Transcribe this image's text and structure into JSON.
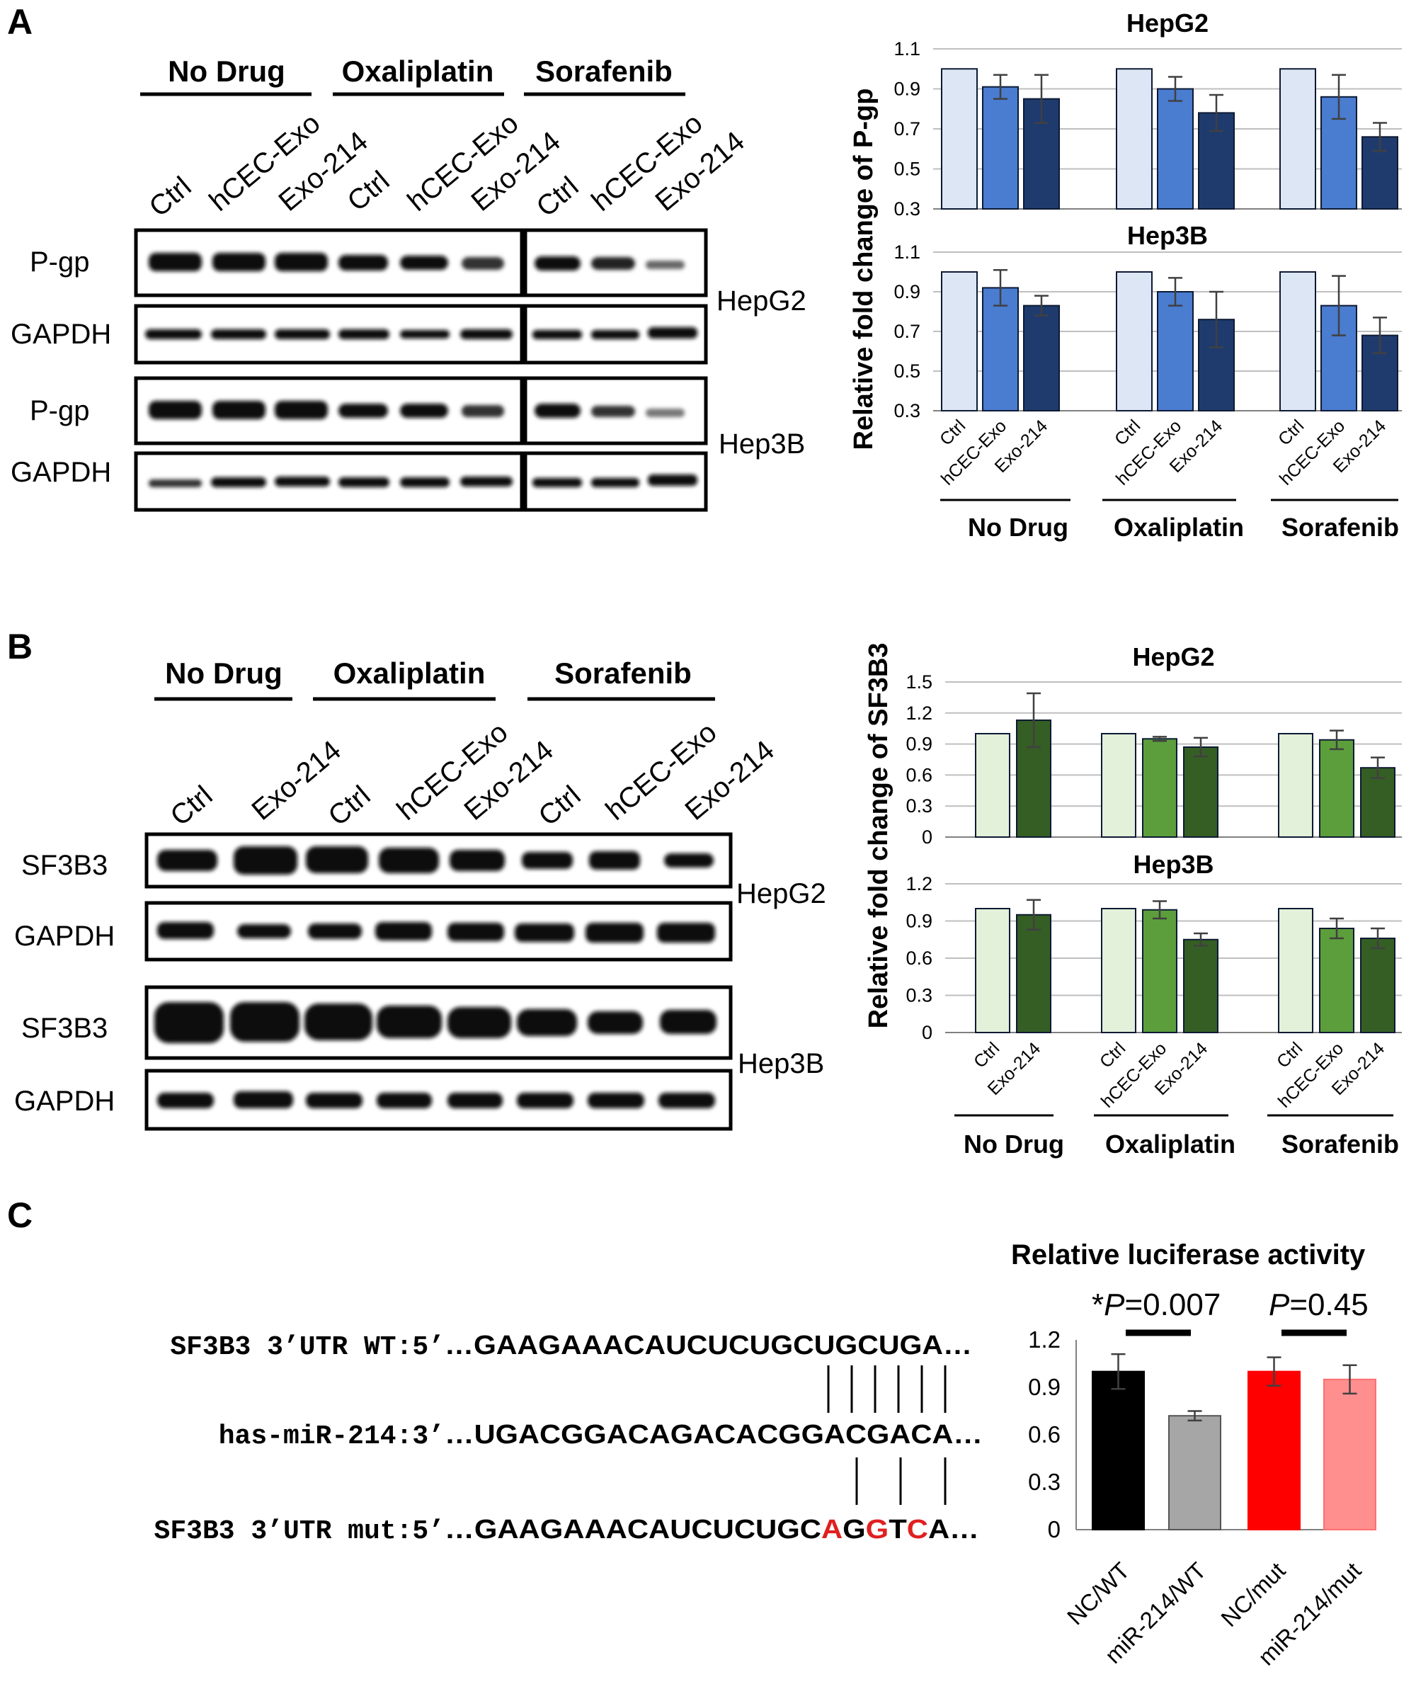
{
  "panels": {
    "A": {
      "letter": "A",
      "blot": {
        "groups": [
          "No Drug",
          "Oxaliplatin",
          "Sorafenib"
        ],
        "lanes": [
          "Ctrl",
          "hCEC-Exo",
          "Exo-214",
          "Ctrl",
          "hCEC-Exo",
          "Exo-214",
          "Ctrl",
          "hCEC-Exo",
          "Exo-214"
        ],
        "rows": [
          "P-gp",
          "GAPDH",
          "P-gp",
          "GAPDH"
        ],
        "cell_lines": [
          "HepG2",
          "Hep3B"
        ]
      },
      "ylabel": "Relative fold change of P-gp",
      "lane_labels": [
        "Ctrl",
        "hCEC-Exo",
        "Exo-214"
      ],
      "group_labels": [
        "No Drug",
        "Oxaliplatin",
        "Sorafenib"
      ]
    },
    "B": {
      "letter": "B",
      "blot": {
        "groups": [
          "No Drug",
          "Oxaliplatin",
          "Sorafenib"
        ],
        "lanes": [
          "Ctrl",
          "Exo-214",
          "Ctrl",
          "hCEC-Exo",
          "Exo-214",
          "Ctrl",
          "hCEC-Exo",
          "Exo-214"
        ],
        "rows": [
          "SF3B3",
          "GAPDH",
          "SF3B3",
          "GAPDH"
        ],
        "cell_lines": [
          "HepG2",
          "Hep3B"
        ]
      },
      "ylabel": "Relative fold change of SF3B3",
      "group_labels": [
        "No Drug",
        "Oxaliplatin",
        "Sorafenib"
      ]
    },
    "C": {
      "letter": "C",
      "seq": {
        "wt_label": "SF3B3 3’UTR WT:5’",
        "wt_seq": "…GAAGAAACAUCUCUGCUGCUGA…",
        "mir_label": "has-miR-214:3’",
        "mir_seq": "…UGACGGACAGACACGGACGACA…",
        "mut_label": "SF3B3 3’UTR mut:5’",
        "mut_prefix": "…GAAGAAACAUCUCUGC",
        "mut_red1": "A",
        "mut_mid1": "G",
        "mut_red2": "G",
        "mut_mid2": "T",
        "mut_red3": "C",
        "mut_suffix": "A…",
        "mut_color": "#e02020"
      },
      "p1_star": "*",
      "p1_p": "P",
      "p1_val": "=0.007",
      "p2_p": "P",
      "p2_val": "=0.45"
    }
  },
  "chart_data": [
    {
      "type": "bar",
      "title": "HepG2",
      "ylabel": "Relative fold change of P-gp",
      "groups": [
        "No Drug",
        "Oxaliplatin",
        "Sorafenib"
      ],
      "categories": [
        "Ctrl",
        "hCEC-Exo",
        "Exo-214"
      ],
      "series": [
        {
          "values": [
            1.0,
            0.91,
            0.85
          ],
          "errors": [
            0,
            0.06,
            0.12
          ]
        },
        {
          "values": [
            1.0,
            0.9,
            0.78
          ],
          "errors": [
            0,
            0.06,
            0.09
          ]
        },
        {
          "values": [
            1.0,
            0.86,
            0.66
          ],
          "errors": [
            0,
            0.11,
            0.07
          ]
        }
      ],
      "ylim": [
        0.3,
        1.1
      ],
      "yticks": [
        "0.3",
        "0.5",
        "0.7",
        "0.9",
        "1.1"
      ],
      "colors": [
        "#dce6f5",
        "#4a7cd0",
        "#1f3b6e"
      ],
      "grid": true
    },
    {
      "type": "bar",
      "title": "Hep3B",
      "ylabel": "Relative fold change of P-gp",
      "groups": [
        "No Drug",
        "Oxaliplatin",
        "Sorafenib"
      ],
      "categories": [
        "Ctrl",
        "hCEC-Exo",
        "Exo-214"
      ],
      "series": [
        {
          "values": [
            1.0,
            0.92,
            0.83
          ],
          "errors": [
            0,
            0.09,
            0.05
          ]
        },
        {
          "values": [
            1.0,
            0.9,
            0.76
          ],
          "errors": [
            0,
            0.07,
            0.14
          ]
        },
        {
          "values": [
            1.0,
            0.83,
            0.68
          ],
          "errors": [
            0,
            0.15,
            0.09
          ]
        }
      ],
      "ylim": [
        0.3,
        1.1
      ],
      "yticks": [
        "0.3",
        "0.5",
        "0.7",
        "0.9",
        "1.1"
      ],
      "colors": [
        "#dce6f5",
        "#4a7cd0",
        "#1f3b6e"
      ],
      "grid": true
    },
    {
      "type": "bar",
      "title": "HepG2",
      "ylabel": "Relative fold change of SF3B3",
      "groups": [
        "No Drug",
        "Oxaliplatin",
        "Sorafenib"
      ],
      "group_categories": [
        [
          "Ctrl",
          "Exo-214"
        ],
        [
          "Ctrl",
          "hCEC-Exo",
          "Exo-214"
        ],
        [
          "Ctrl",
          "hCEC-Exo",
          "Exo-214"
        ]
      ],
      "series": [
        {
          "values": [
            1.0,
            1.13
          ],
          "errors": [
            0,
            0.26
          ]
        },
        {
          "values": [
            1.0,
            0.95,
            0.87
          ],
          "errors": [
            0,
            0.02,
            0.09
          ]
        },
        {
          "values": [
            1.0,
            0.94,
            0.67
          ],
          "errors": [
            0,
            0.09,
            0.1
          ]
        }
      ],
      "ylim": [
        0,
        1.5
      ],
      "yticks": [
        "0",
        "0.3",
        "0.6",
        "0.9",
        "1.2",
        "1.5"
      ],
      "colors": [
        "#e3f0da",
        "#5c9e3c",
        "#355e24"
      ],
      "grid": true
    },
    {
      "type": "bar",
      "title": "Hep3B",
      "ylabel": "Relative fold change of SF3B3",
      "groups": [
        "No Drug",
        "Oxaliplatin",
        "Sorafenib"
      ],
      "group_categories": [
        [
          "Ctrl",
          "Exo-214"
        ],
        [
          "Ctrl",
          "hCEC-Exo",
          "Exo-214"
        ],
        [
          "Ctrl",
          "hCEC-Exo",
          "Exo-214"
        ]
      ],
      "series": [
        {
          "values": [
            1.0,
            0.95
          ],
          "errors": [
            0,
            0.12
          ]
        },
        {
          "values": [
            1.0,
            0.99,
            0.75
          ],
          "errors": [
            0,
            0.07,
            0.05
          ]
        },
        {
          "values": [
            1.0,
            0.84,
            0.76
          ],
          "errors": [
            0,
            0.08,
            0.08
          ]
        }
      ],
      "ylim": [
        0,
        1.2
      ],
      "yticks": [
        "0",
        "0.3",
        "0.6",
        "0.9",
        "1.2"
      ],
      "colors": [
        "#e3f0da",
        "#5c9e3c",
        "#355e24"
      ],
      "grid": true
    },
    {
      "type": "bar",
      "title": "Relative luciferase activity",
      "categories": [
        "NC/WT",
        "miR-214/WT",
        "NC/mut",
        "miR-214/mut"
      ],
      "values": [
        1.0,
        0.72,
        1.0,
        0.95
      ],
      "errors": [
        0.11,
        0.03,
        0.09,
        0.09
      ],
      "ylim": [
        0,
        1.2
      ],
      "yticks": [
        "0",
        "0.3",
        "0.6",
        "0.9",
        "1.2"
      ],
      "colors": [
        "#000000",
        "#a6a6a6",
        "#ff0000",
        "#ff8f8f"
      ],
      "grid": false
    }
  ]
}
